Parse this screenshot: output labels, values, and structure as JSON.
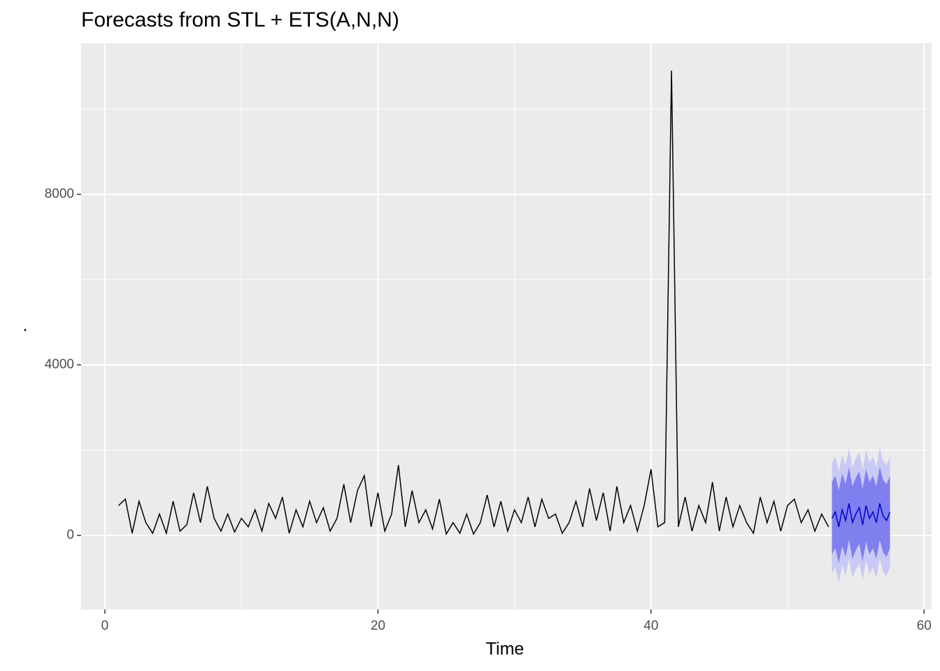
{
  "chart_data": {
    "type": "line",
    "title": "Forecasts from STL +  ETS(A,N,N)",
    "x_label": "Time",
    "y_label": ".",
    "xlim": [
      -1.74,
      60.55
    ],
    "ylim": [
      -1738,
      11541
    ],
    "xticks": [
      0,
      20,
      40,
      60
    ],
    "yticks": [
      0,
      4000,
      8000
    ],
    "x_minor_ticks": [
      10,
      30,
      50
    ],
    "y_minor_ticks": [
      2000,
      6000,
      10000
    ],
    "grid": true,
    "color": "#000000",
    "x": [
      1,
      1.5,
      2,
      2.5,
      3,
      3.5,
      4,
      4.5,
      5,
      5.5,
      6,
      6.5,
      7,
      7.5,
      8,
      8.5,
      9,
      9.5,
      10,
      10.5,
      11,
      11.5,
      12,
      12.5,
      13,
      13.5,
      14,
      14.5,
      15,
      15.5,
      16,
      16.5,
      17,
      17.5,
      18,
      18.5,
      19,
      19.5,
      20,
      20.5,
      21,
      21.5,
      22,
      22.5,
      23,
      23.5,
      24,
      24.5,
      25,
      25.5,
      26,
      26.5,
      27,
      27.5,
      28,
      28.5,
      29,
      29.5,
      30,
      30.5,
      31,
      31.5,
      32,
      32.5,
      33,
      33.5,
      34,
      34.5,
      35,
      35.5,
      36,
      36.5,
      37,
      37.5,
      38,
      38.5,
      39,
      39.5,
      40,
      40.5,
      41,
      41.5,
      42,
      42.5,
      43,
      43.5,
      44,
      44.5,
      45,
      45.5,
      46,
      46.5,
      47,
      47.5,
      48,
      48.5,
      49,
      49.5,
      50,
      50.5,
      51,
      51.5,
      52,
      52.5,
      53
    ],
    "values": [
      700,
      850,
      50,
      800,
      300,
      50,
      500,
      50,
      800,
      100,
      250,
      1000,
      300,
      1150,
      400,
      100,
      500,
      80,
      400,
      200,
      600,
      100,
      750,
      400,
      900,
      50,
      600,
      200,
      800,
      300,
      650,
      100,
      400,
      1200,
      300,
      1050,
      1400,
      200,
      1000,
      100,
      500,
      1650,
      200,
      1050,
      300,
      600,
      150,
      850,
      30,
      300,
      50,
      500,
      30,
      300,
      950,
      200,
      800,
      100,
      600,
      300,
      900,
      200,
      850,
      400,
      500,
      50,
      300,
      800,
      200,
      1100,
      350,
      1000,
      100,
      1150,
      300,
      700,
      100,
      700,
      1550,
      200,
      300,
      10900,
      200,
      900,
      100,
      700,
      300,
      1250,
      100,
      900,
      200,
      700,
      300,
      50,
      900,
      300,
      800,
      100,
      700,
      850,
      300,
      600,
      100,
      500,
      200
    ],
    "forecast": {
      "x": [
        53.25,
        53.5,
        53.75,
        54,
        54.25,
        54.5,
        54.75,
        55,
        55.25,
        55.5,
        55.75,
        56,
        56.25,
        56.5,
        56.75,
        57,
        57.25,
        57.5
      ],
      "mean": [
        400,
        550,
        200,
        600,
        350,
        750,
        300,
        500,
        650,
        250,
        700,
        400,
        550,
        300,
        750,
        450,
        350,
        550
      ],
      "lo80": [
        -450,
        -300,
        -650,
        -250,
        -500,
        -100,
        -550,
        -350,
        -200,
        -600,
        -150,
        -450,
        -300,
        -550,
        -100,
        -400,
        -500,
        -300
      ],
      "hi80": [
        1250,
        1400,
        1050,
        1450,
        1200,
        1600,
        1150,
        1350,
        1500,
        1100,
        1550,
        1250,
        1400,
        1150,
        1600,
        1300,
        1200,
        1400
      ],
      "lo95": [
        -900,
        -750,
        -1100,
        -700,
        -950,
        -550,
        -1000,
        -800,
        -650,
        -1050,
        -600,
        -900,
        -750,
        -1000,
        -550,
        -850,
        -950,
        -750
      ],
      "hi95": [
        1700,
        1850,
        1500,
        1900,
        1650,
        2050,
        1600,
        1800,
        1950,
        1550,
        2000,
        1700,
        1850,
        1600,
        2050,
        1750,
        1650,
        1850
      ],
      "color": "#0000cc",
      "color80": "#7f7ff0",
      "color95": "#c9c9f5"
    }
  }
}
